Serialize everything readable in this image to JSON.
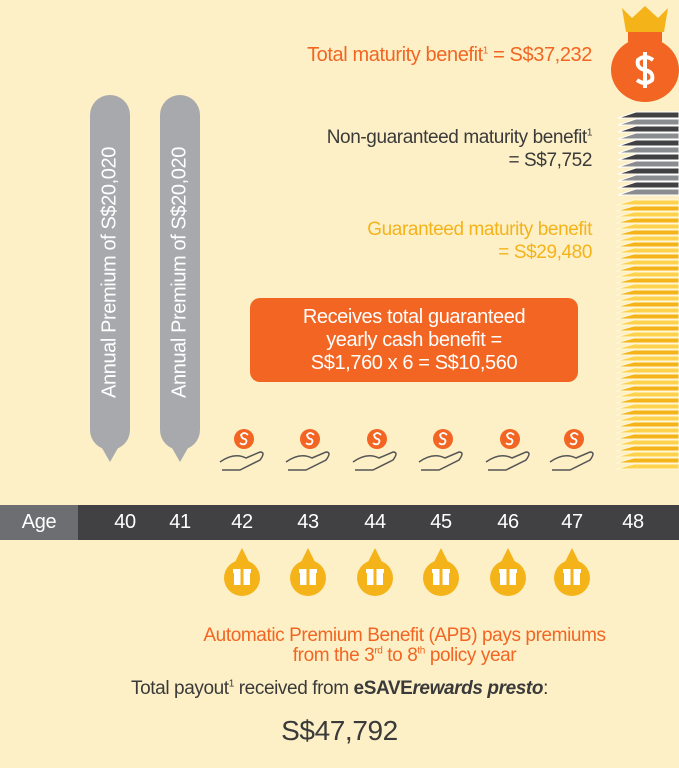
{
  "total_maturity": {
    "label": "Total maturity benefit",
    "note": "1",
    "value": " = S$37,232"
  },
  "non_guaranteed": {
    "label": "Non-guaranteed maturity benefit",
    "note": "1",
    "value": "= S$7,752"
  },
  "guaranteed": {
    "label": "Guaranteed maturity benefit",
    "value": "= S$29,480"
  },
  "cash_benefit": {
    "lines": [
      "Receives total guaranteed",
      "yearly cash benefit =",
      "S$1,760 x 6 = S$10,560"
    ]
  },
  "premiums": [
    {
      "label": "Annual Premium of S$20,020"
    },
    {
      "label": "Annual Premium of S$20,020"
    }
  ],
  "age_row": {
    "label": "Age",
    "ages": [
      40,
      41,
      42,
      43,
      44,
      45,
      46,
      47,
      48
    ]
  },
  "apb": {
    "line1": "Automatic Premium Benefit (APB) pays premiums",
    "line2_start": "from the 3",
    "sup1": "rd",
    "line2_mid": " to 8",
    "sup2": "th",
    "line2_end": " policy year"
  },
  "payout": {
    "label": "Total payout",
    "note": "1",
    "text": " received from ",
    "brand": "eSAVE",
    "product": "rewards presto",
    "colon": ":",
    "amount": "S$47,792"
  }
}
